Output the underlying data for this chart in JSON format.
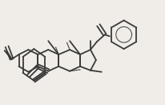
{
  "bg_color": "#f0ede8",
  "line_color": "#3a3a3a",
  "line_width": 1.3,
  "figsize": [
    2.06,
    1.31
  ],
  "dpi": 100
}
